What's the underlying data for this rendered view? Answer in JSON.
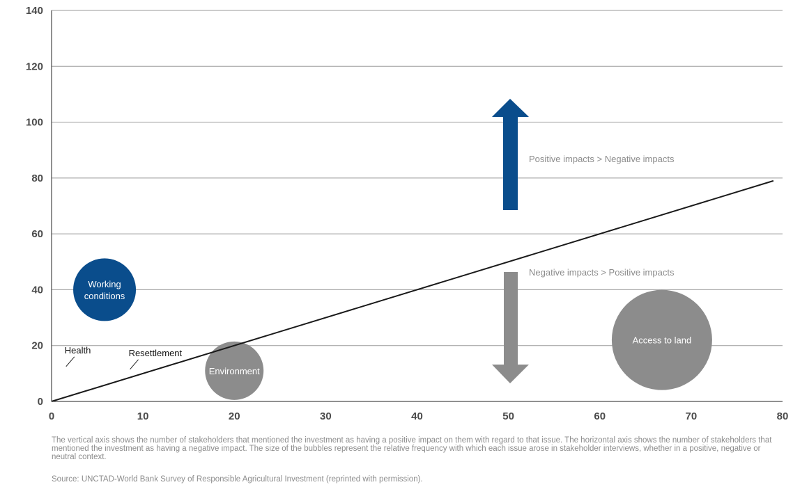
{
  "chart_data": {
    "type": "scatter",
    "subtype": "bubble",
    "x_ticks": [
      0,
      10,
      20,
      30,
      40,
      50,
      60,
      70,
      80
    ],
    "y_ticks": [
      0,
      20,
      40,
      60,
      80,
      100,
      120,
      140
    ],
    "xlim": [
      0,
      80
    ],
    "ylim": [
      0,
      140
    ],
    "grid": "horizontal",
    "bubbles": [
      {
        "label": "Working conditions",
        "label_lines": [
          "Working",
          "conditions"
        ],
        "x": 5.8,
        "y": 40,
        "relative_size": 15,
        "color": "#0a4d8c"
      },
      {
        "label": "Health",
        "x": 2.5,
        "y": 16,
        "relative_size": 0
      },
      {
        "label": "Resettlement",
        "x": 9.5,
        "y": 15,
        "relative_size": 0
      },
      {
        "label": "Environment",
        "x": 20,
        "y": 11,
        "relative_size": 14,
        "color": "#8c8c8c"
      },
      {
        "label": "Access to land",
        "x": 66.8,
        "y": 22,
        "relative_size": 24,
        "color": "#8c8c8c"
      }
    ],
    "diagonal_line": {
      "x": [
        0,
        79
      ],
      "y": [
        0,
        79
      ]
    },
    "annotations": [
      {
        "text": "Positive impacts > Negative impacts",
        "arrow": "up",
        "color": "#0a4d8c"
      },
      {
        "text": "Negative impacts > Positive impacts",
        "arrow": "down",
        "color": "#8c8c8c"
      }
    ]
  },
  "notes": "The vertical axis shows the number of stakeholders that mentioned the investment as having a positive impact on them with regard to that issue. The horizontal axis shows the number of stakeholders that mentioned the investment as having a negative impact. The size of the bubbles represent the relative frequency with which each issue arose in stakeholder interviews, whether in a positive, negative or neutral context.",
  "source": "Source:  UNCTAD-World Bank Survey of Responsible Agricultural Investment (reprinted with permission).",
  "colors": {
    "blue": "#0a4d8c",
    "grey": "#8c8c8c",
    "grid": "#9a9a9a",
    "text_grey": "#8c8c8c"
  }
}
